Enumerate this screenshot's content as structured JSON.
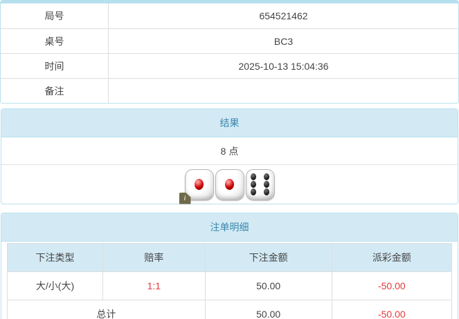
{
  "info_table": {
    "rows": [
      {
        "label": "局号",
        "value": "654521462"
      },
      {
        "label": "桌号",
        "value": "BC3"
      },
      {
        "label": "时间",
        "value": "2025-10-13 15:04:36"
      },
      {
        "label": "备注",
        "value": ""
      }
    ]
  },
  "result_panel": {
    "title": "结果",
    "points": "8 点",
    "dice": [
      1,
      1,
      6
    ],
    "info_icon": "i"
  },
  "bets_panel": {
    "title": "注单明细",
    "columns": [
      "下注类型",
      "赔率",
      "下注金额",
      "派彩金额"
    ],
    "rows": [
      {
        "type": "大/小(大)",
        "odds": "1:1",
        "bet": "50.00",
        "payout": "-50.00"
      }
    ],
    "total": {
      "label": "总计",
      "bet": "50.00",
      "payout": "-50.00"
    }
  },
  "colors": {
    "panel_border": "#b9e1ee",
    "strip": "#b7e0ee",
    "header_bg": "#d3eaf5",
    "header_text": "#3a87ad",
    "cell_border": "#dddddd",
    "text": "#444444",
    "negative": "#e4393c"
  }
}
